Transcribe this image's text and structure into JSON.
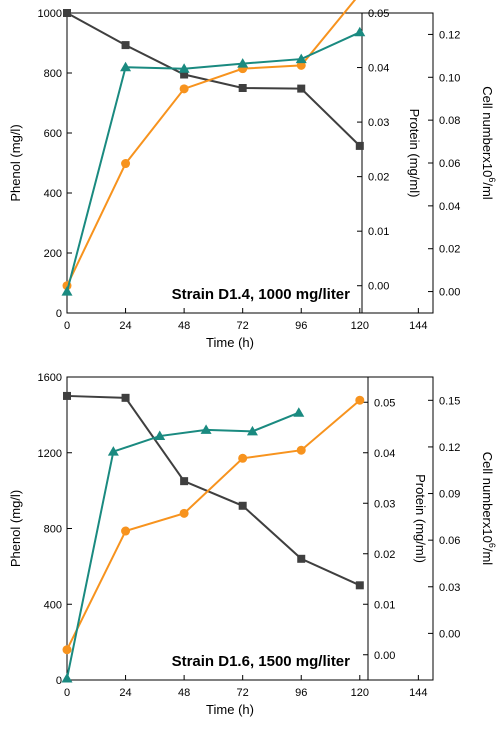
{
  "chart_data": [
    {
      "type": "line",
      "annotation": "Strain D1.4, 1000 mg/liter",
      "xlabel": "Time (h)",
      "ylabel_left": "Phenol (mg/l)",
      "ylabel_protein": "Protein (mg/ml)",
      "ylabel_cell": "Cell numberx10^6/ml",
      "cell_label_parts": [
        "Cell numberx10",
        "6",
        "/ml"
      ],
      "xlim": [
        0,
        150
      ],
      "x_ticks": [
        "0",
        "24",
        "48",
        "72",
        "96",
        "120",
        "144"
      ],
      "x_tick_values": [
        0,
        24,
        48,
        72,
        96,
        120,
        144
      ],
      "phenol_axis": {
        "range": [
          0,
          1000
        ],
        "ticks": [
          "0",
          "200",
          "400",
          "600",
          "800",
          "1000"
        ],
        "tick_values": [
          0,
          200,
          400,
          600,
          800,
          1000
        ]
      },
      "protein_axis": {
        "range": [
          -0.005,
          0.05
        ],
        "ticks": [
          "0.00",
          "0.01",
          "0.02",
          "0.03",
          "0.04",
          "0.05"
        ],
        "tick_values": [
          0,
          0.01,
          0.02,
          0.03,
          0.04,
          0.05
        ]
      },
      "cell_axis": {
        "range": [
          -0.01,
          0.13
        ],
        "ticks": [
          "0.00",
          "0.02",
          "0.04",
          "0.06",
          "0.08",
          "0.10",
          "0.12"
        ],
        "tick_values": [
          0,
          0.02,
          0.04,
          0.06,
          0.08,
          0.1,
          0.12
        ]
      },
      "series": [
        {
          "role": "phenol",
          "marker": "square",
          "color": "#3f3f3f",
          "axis": "phenol",
          "x": [
            0,
            24,
            48,
            72,
            96,
            120
          ],
          "y": [
            1000,
            893,
            795,
            750,
            748,
            557
          ]
        },
        {
          "role": "protein",
          "marker": "circle",
          "color": "#f7931e",
          "axis": "protein",
          "x": [
            0,
            24,
            48,
            72,
            96,
            120
          ],
          "y": [
            0.0,
            0.0224,
            0.0361,
            0.0398,
            0.0404,
            0.0535
          ]
        },
        {
          "role": "cell",
          "marker": "triangle",
          "color": "#1a8a80",
          "axis": "cell",
          "x": [
            0,
            24,
            48,
            72,
            96,
            120
          ],
          "y": [
            0.0,
            0.1047,
            0.104,
            0.1064,
            0.1085,
            0.121
          ]
        }
      ]
    },
    {
      "type": "line",
      "annotation": "Strain D1.6, 1500 mg/liter",
      "xlabel": "Time (h)",
      "ylabel_left": "Phenol (mg/l)",
      "ylabel_protein": "Protein (mg/ml)",
      "ylabel_cell": "Cell numberx10^6/ml",
      "cell_label_parts": [
        "Cell numberx10",
        "6",
        "/ml"
      ],
      "xlim": [
        0,
        150
      ],
      "x_ticks": [
        "0",
        "24",
        "48",
        "72",
        "96",
        "120",
        "144"
      ],
      "x_tick_values": [
        0,
        24,
        48,
        72,
        96,
        120,
        144
      ],
      "phenol_axis": {
        "range": [
          0,
          1600
        ],
        "ticks": [
          "0",
          "400",
          "800",
          "1200",
          "1600"
        ],
        "tick_values": [
          0,
          400,
          800,
          1200,
          1600
        ]
      },
      "protein_axis": {
        "range": [
          -0.005,
          0.055
        ],
        "ticks": [
          "0.00",
          "0.01",
          "0.02",
          "0.03",
          "0.04",
          "0.05"
        ],
        "tick_values": [
          0,
          0.01,
          0.02,
          0.03,
          0.04,
          0.05
        ]
      },
      "cell_axis": {
        "range": [
          -0.03,
          0.165
        ],
        "ticks": [
          "0.00",
          "0.03",
          "0.06",
          "0.09",
          "0.12",
          "0.15"
        ],
        "tick_values": [
          0,
          0.03,
          0.06,
          0.09,
          0.12,
          0.15
        ]
      },
      "series": [
        {
          "role": "phenol",
          "marker": "square",
          "color": "#3f3f3f",
          "axis": "phenol",
          "x": [
            0,
            24,
            48,
            72,
            96,
            120
          ],
          "y": [
            1500,
            1490,
            1050,
            920,
            640,
            500
          ]
        },
        {
          "role": "protein",
          "marker": "circle",
          "color": "#f7931e",
          "axis": "protein",
          "x": [
            0,
            24,
            48,
            72,
            96,
            120
          ],
          "y": [
            0.001,
            0.0245,
            0.028,
            0.0389,
            0.0405,
            0.0504
          ]
        },
        {
          "role": "cell",
          "marker": "triangle",
          "color": "#1a8a80",
          "axis": "cell",
          "x": [
            0,
            19,
            38,
            57,
            76,
            95
          ],
          "y": [
            -0.029,
            0.117,
            0.127,
            0.131,
            0.13,
            0.142
          ]
        }
      ]
    }
  ]
}
